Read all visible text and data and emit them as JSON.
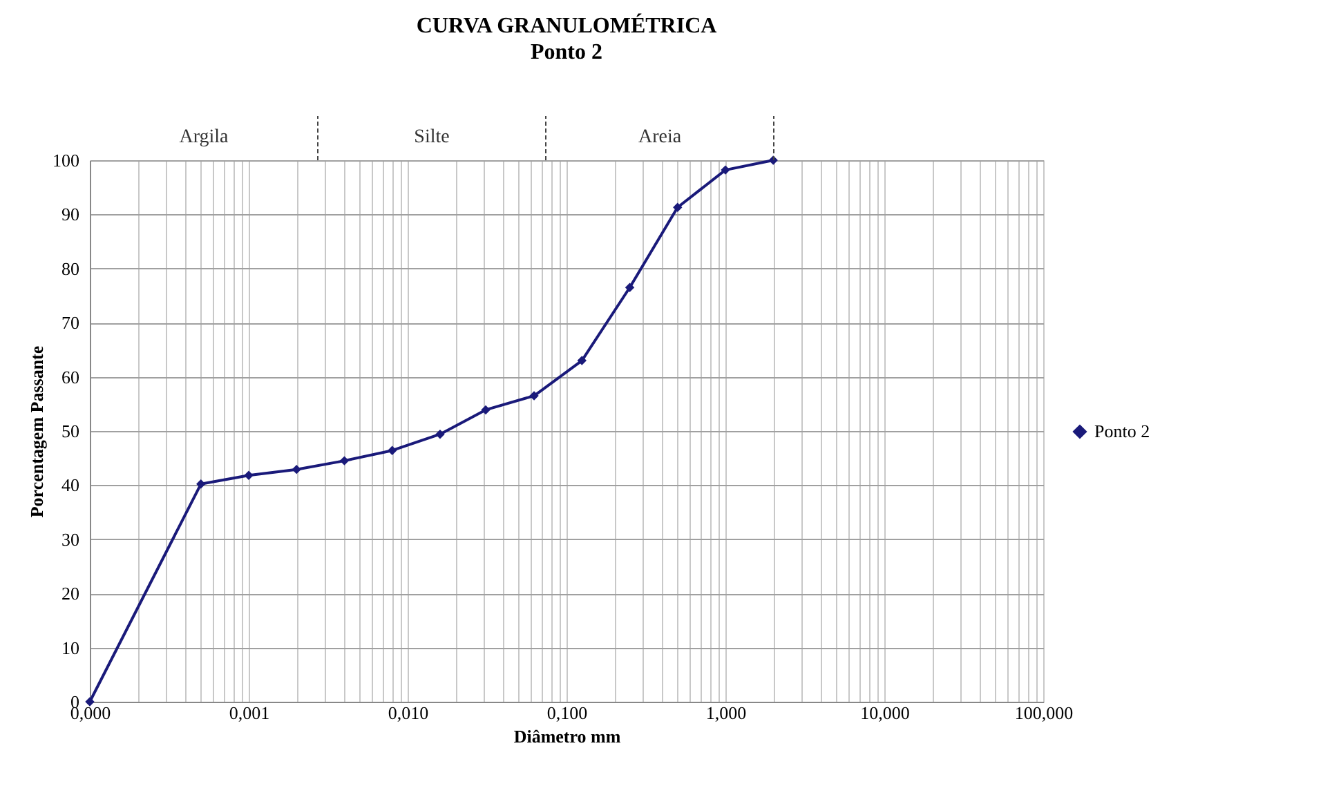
{
  "chart_data": {
    "type": "line",
    "title": "CURVA GRANULOMÉTRICA",
    "subtitle": "Ponto 2",
    "xlabel": "Diâmetro mm",
    "ylabel": "Porcentagem Passante",
    "x": [
      0.0001,
      0.0005,
      0.001,
      0.002,
      0.004,
      0.008,
      0.016,
      0.031,
      0.0625,
      0.125,
      0.25,
      0.5,
      1,
      2
    ],
    "series": [
      {
        "name": "Ponto 2",
        "color": "#1a1a7a",
        "values": [
          0,
          40.2,
          41.8,
          42.9,
          44.5,
          46.4,
          49.4,
          53.9,
          56.5,
          63.0,
          76.5,
          91.3,
          98.2,
          100
        ]
      }
    ],
    "log": "x",
    "xlim": [
      0.0001,
      100
    ],
    "ylim": [
      0,
      100
    ],
    "xticks": [
      {
        "value": 0.0001,
        "label": "0,000"
      },
      {
        "value": 0.0002,
        "label": null
      },
      {
        "value": 0.0003,
        "label": null
      },
      {
        "value": 0.0004,
        "label": null
      },
      {
        "value": 0.0005,
        "label": null
      },
      {
        "value": 0.0006,
        "label": null
      },
      {
        "value": 0.0007,
        "label": null
      },
      {
        "value": 0.0008,
        "label": null
      },
      {
        "value": 0.0009,
        "label": null
      },
      {
        "value": 0.001,
        "label": "0,001"
      },
      {
        "value": 0.002,
        "label": null
      },
      {
        "value": 0.003,
        "label": null
      },
      {
        "value": 0.004,
        "label": null
      },
      {
        "value": 0.005,
        "label": null
      },
      {
        "value": 0.006,
        "label": null
      },
      {
        "value": 0.007,
        "label": null
      },
      {
        "value": 0.008,
        "label": null
      },
      {
        "value": 0.009,
        "label": null
      },
      {
        "value": 0.01,
        "label": "0,010"
      },
      {
        "value": 0.02,
        "label": null
      },
      {
        "value": 0.03,
        "label": null
      },
      {
        "value": 0.04,
        "label": null
      },
      {
        "value": 0.05,
        "label": null
      },
      {
        "value": 0.06,
        "label": null
      },
      {
        "value": 0.07,
        "label": null
      },
      {
        "value": 0.08,
        "label": null
      },
      {
        "value": 0.09,
        "label": null
      },
      {
        "value": 0.1,
        "label": "0,100"
      },
      {
        "value": 0.2,
        "label": null
      },
      {
        "value": 0.3,
        "label": null
      },
      {
        "value": 0.4,
        "label": null
      },
      {
        "value": 0.5,
        "label": null
      },
      {
        "value": 0.6,
        "label": null
      },
      {
        "value": 0.7,
        "label": null
      },
      {
        "value": 0.8,
        "label": null
      },
      {
        "value": 0.9,
        "label": null
      },
      {
        "value": 1,
        "label": "1,000"
      },
      {
        "value": 2,
        "label": null
      },
      {
        "value": 3,
        "label": null
      },
      {
        "value": 4,
        "label": null
      },
      {
        "value": 5,
        "label": null
      },
      {
        "value": 6,
        "label": null
      },
      {
        "value": 7,
        "label": null
      },
      {
        "value": 8,
        "label": null
      },
      {
        "value": 9,
        "label": null
      },
      {
        "value": 10,
        "label": "10,000"
      },
      {
        "value": 20,
        "label": null
      },
      {
        "value": 30,
        "label": null
      },
      {
        "value": 40,
        "label": null
      },
      {
        "value": 50,
        "label": null
      },
      {
        "value": 60,
        "label": null
      },
      {
        "value": 70,
        "label": null
      },
      {
        "value": 80,
        "label": null
      },
      {
        "value": 90,
        "label": null
      },
      {
        "value": 100,
        "label": "100,000"
      }
    ],
    "yticks": [
      0,
      10,
      20,
      30,
      40,
      50,
      60,
      70,
      80,
      90,
      100
    ],
    "annotations": [
      "Argila",
      "Silte",
      "Areia"
    ],
    "grid": true,
    "legend": "right",
    "marker": "diamond",
    "line_style": "solid"
  }
}
